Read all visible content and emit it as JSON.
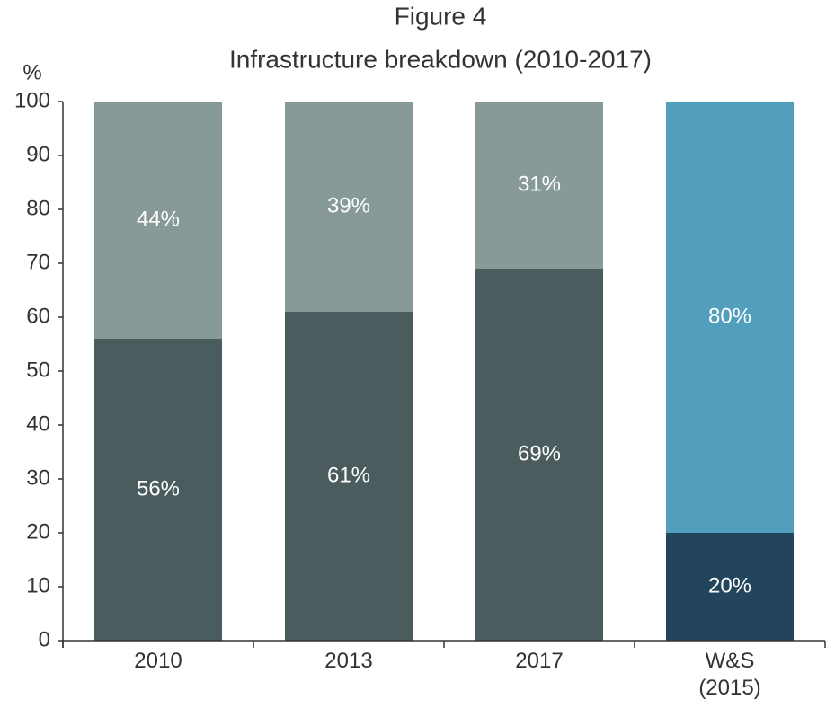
{
  "chart_data": {
    "type": "stacked_bar",
    "title": "Figure 4",
    "subtitle": "Infrastructure breakdown (2010-2017)",
    "y_label": "%",
    "categories": [
      "2010",
      "2013",
      "2017",
      "W&S (2015)"
    ],
    "series": [
      {
        "colors": [
          "#4b5c5e",
          "#4b5c5e",
          "#4b5c5e",
          "#22445c"
        ],
        "values": [
          56,
          61,
          69,
          20
        ],
        "value_labels": [
          "56%",
          "61%",
          "69%",
          "20%"
        ]
      },
      {
        "colors": [
          "#879a98",
          "#879a98",
          "#879a98",
          "#519fbd"
        ],
        "values": [
          44,
          39,
          31,
          80
        ],
        "value_labels": [
          "44%",
          "39%",
          "31%",
          "80%"
        ]
      }
    ],
    "ylim": [
      0,
      100
    ],
    "yticks": [
      0,
      10,
      20,
      30,
      40,
      50,
      60,
      70,
      80,
      90,
      100
    ],
    "grid": false
  }
}
